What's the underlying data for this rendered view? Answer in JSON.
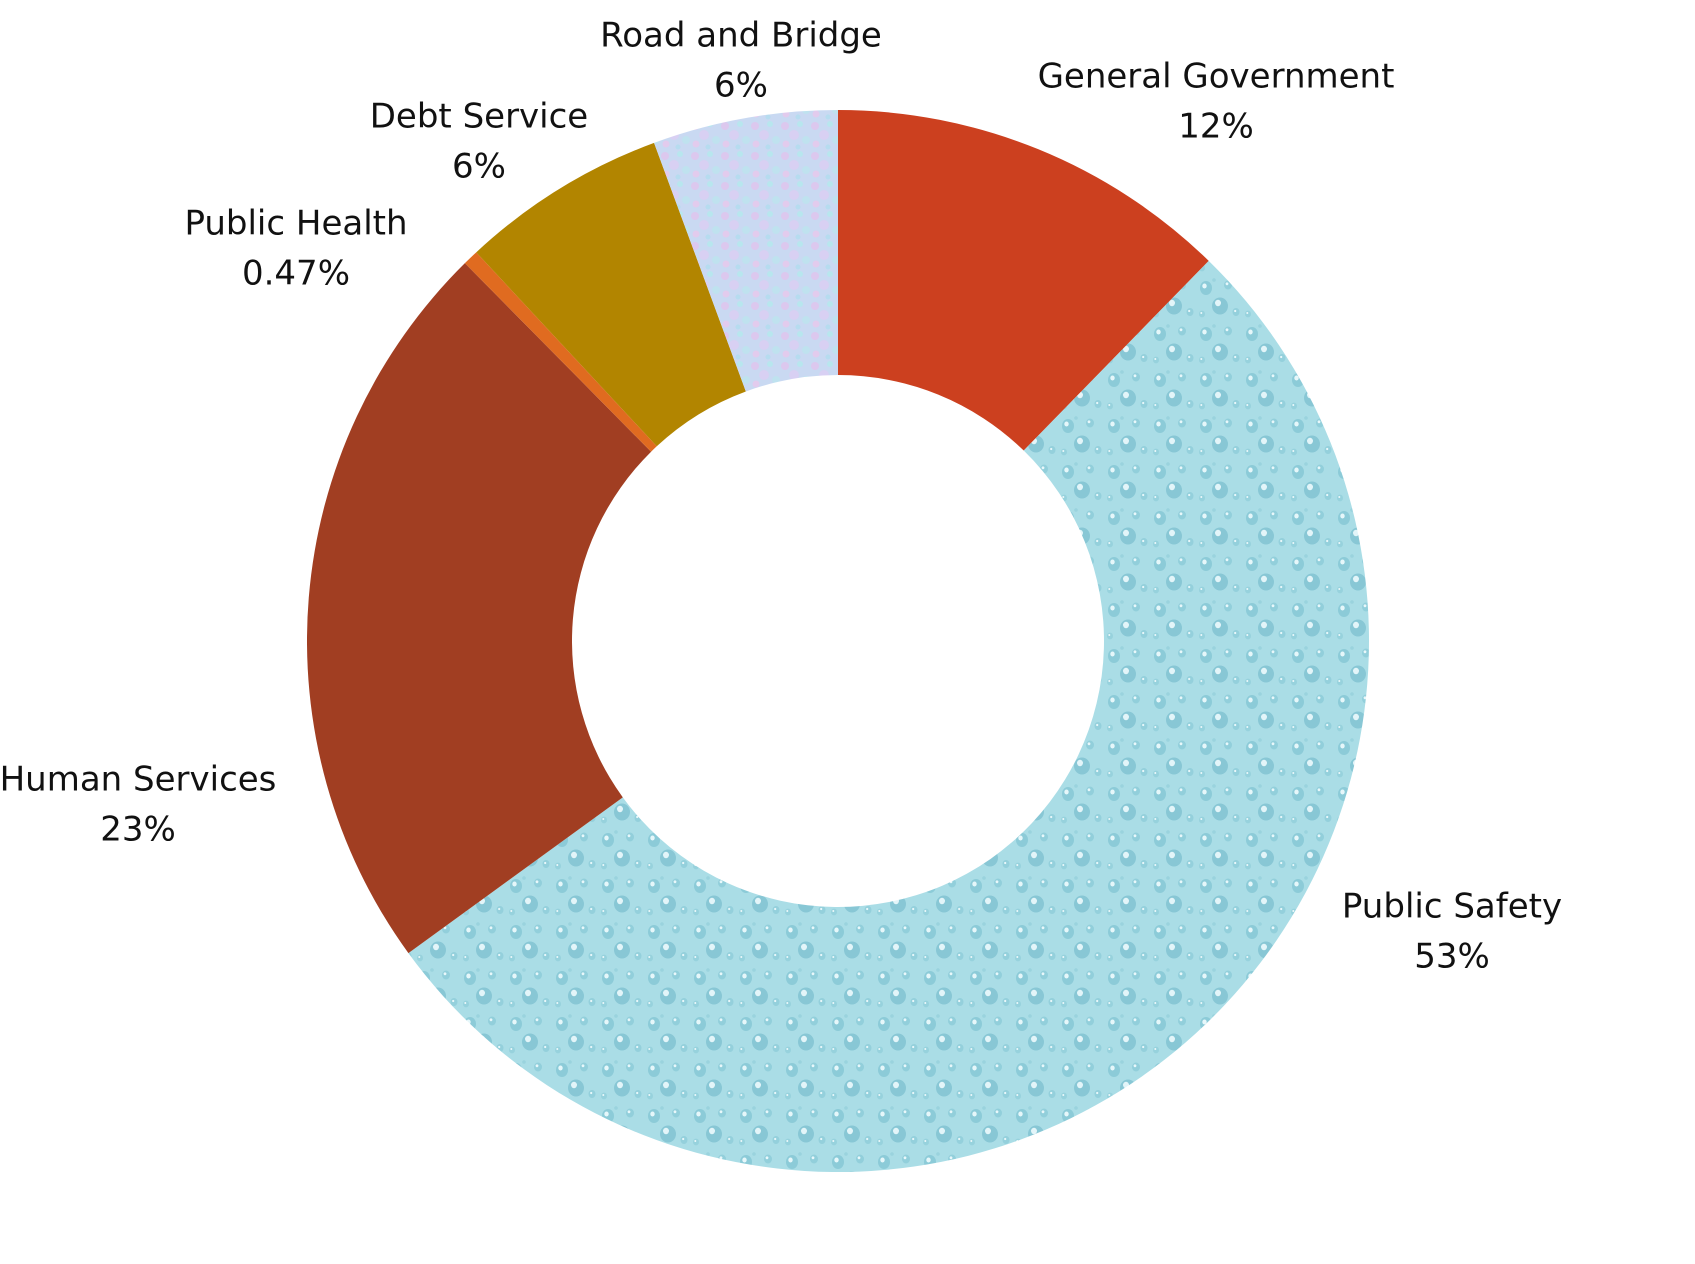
{
  "chart_data": {
    "type": "donut",
    "title": "",
    "legend": "none",
    "direction": "clockwise",
    "start_angle_deg": 0,
    "slices": [
      {
        "name": "General Government",
        "label": "12%",
        "value": 12.3,
        "color": "#cc401f",
        "fill": "solid"
      },
      {
        "name": "Public Safety",
        "label": "53%",
        "value": 52.7,
        "color": "#aadde6",
        "fill": "droplets"
      },
      {
        "name": "Human Services",
        "label": "23%",
        "value": 22.6,
        "color": "#a13e22",
        "fill": "solid"
      },
      {
        "name": "Public Health",
        "label": "0.47%",
        "value": 0.47,
        "color": "#e06b20",
        "fill": "solid"
      },
      {
        "name": "Debt Service",
        "label": "6%",
        "value": 6.3,
        "color": "#b28500",
        "fill": "solid"
      },
      {
        "name": "Road and Bridge",
        "label": "6%",
        "value": 5.63,
        "color": "#c9d9f2",
        "fill": "mottled"
      }
    ]
  }
}
